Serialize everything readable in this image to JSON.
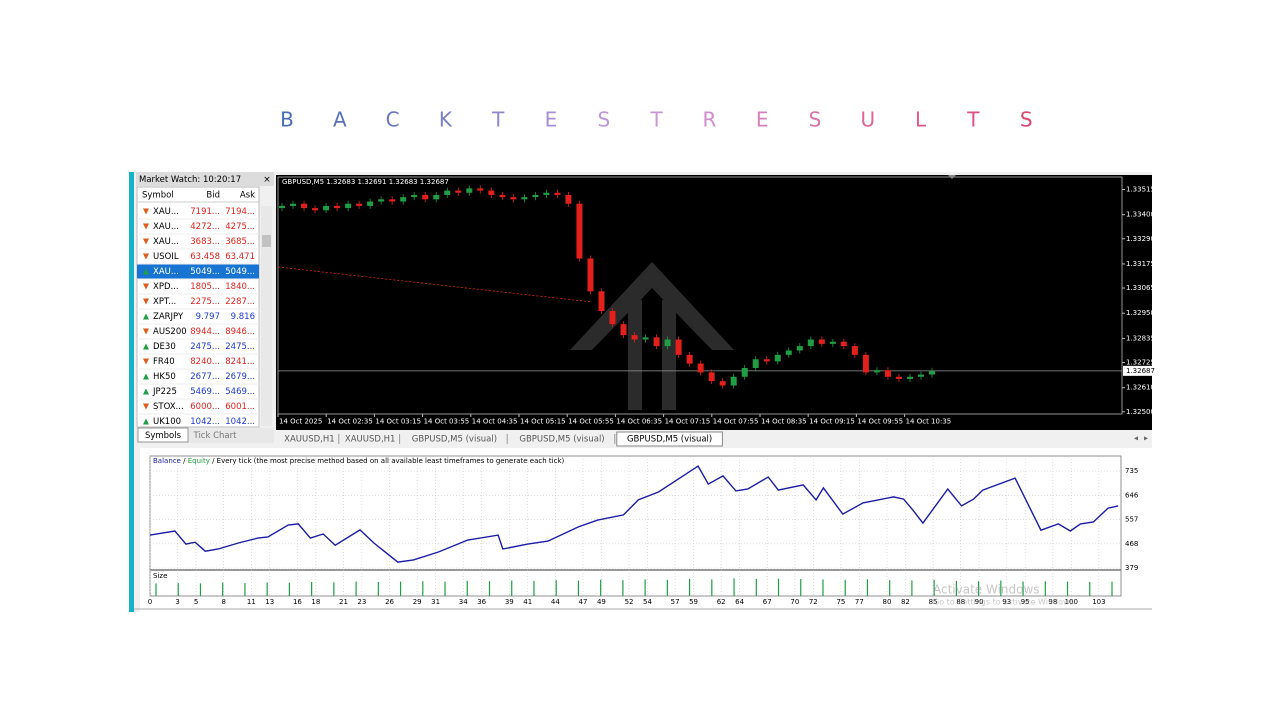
{
  "title_letters": [
    "B",
    "A",
    "C",
    "K",
    "T",
    "E",
    "S",
    "T",
    "R",
    "E",
    "S",
    "U",
    "L",
    "T",
    "S"
  ],
  "title_colors": [
    "#4a6db5",
    "#5a72ba",
    "#6a78c0",
    "#7a7fc6",
    "#8e88cc",
    "#a590d4",
    "#bb98dc",
    "#c995d6",
    "#d08ccb",
    "#d681bd",
    "#da74ab",
    "#dc6699",
    "#de5a8a",
    "#df4f7d",
    "#e04470"
  ],
  "market_watch": {
    "title": "Market Watch: 10:20:17",
    "columns": [
      "Symbol",
      "Bid",
      "Ask"
    ],
    "selected": 4,
    "rows": [
      {
        "symbol": "XAU...",
        "bid": "7191...",
        "ask": "7194...",
        "dir": "down"
      },
      {
        "symbol": "XAU...",
        "bid": "4272...",
        "ask": "4275...",
        "dir": "down"
      },
      {
        "symbol": "XAU...",
        "bid": "3683...",
        "ask": "3685...",
        "dir": "down"
      },
      {
        "symbol": "USOIL",
        "bid": "63.458",
        "ask": "63.471",
        "dir": "down"
      },
      {
        "symbol": "XAU...",
        "bid": "5049...",
        "ask": "5049...",
        "dir": "up"
      },
      {
        "symbol": "XPD...",
        "bid": "1805...",
        "ask": "1840...",
        "dir": "down"
      },
      {
        "symbol": "XPT...",
        "bid": "2275...",
        "ask": "2287...",
        "dir": "down"
      },
      {
        "symbol": "ZARJPY",
        "bid": "9.797",
        "ask": "9.816",
        "dir": "up"
      },
      {
        "symbol": "AUS200",
        "bid": "8944...",
        "ask": "8946...",
        "dir": "down"
      },
      {
        "symbol": "DE30",
        "bid": "2475...",
        "ask": "2475...",
        "dir": "up"
      },
      {
        "symbol": "FR40",
        "bid": "8240...",
        "ask": "8241...",
        "dir": "down"
      },
      {
        "symbol": "HK50",
        "bid": "2677...",
        "ask": "2679...",
        "dir": "up"
      },
      {
        "symbol": "JP225",
        "bid": "5469...",
        "ask": "5469...",
        "dir": "up"
      },
      {
        "symbol": "STOX...",
        "bid": "6000...",
        "ask": "6001...",
        "dir": "down"
      },
      {
        "symbol": "UK100",
        "bid": "1042...",
        "ask": "1042...",
        "dir": "up"
      }
    ],
    "tabs": [
      "Symbols",
      "Tick Chart"
    ]
  },
  "chart_tabs": [
    "XAUUSD,H1",
    "XAUUSD,H1",
    "GBPUSD,M5 (visual)",
    "GBPUSD,M5 (visual)",
    "GBPUSD,M5 (visual)"
  ],
  "active_tab": 4,
  "watermark": [
    "Activate Windows",
    "Go to Settings to activate Windows."
  ],
  "chart_data": [
    {
      "type": "candlestick",
      "title": "GBPUSD,M5  1.32683 1.32691 1.32683 1.32687",
      "up_color": "#1f9e46",
      "down_color": "#e3211c",
      "time_labels": [
        "14 Oct 2025",
        "14 Oct 02:35",
        "14 Oct 03:15",
        "14 Oct 03:55",
        "14 Oct 04:35",
        "14 Oct 05:15",
        "14 Oct 05:55",
        "14 Oct 06:35",
        "14 Oct 07:15",
        "14 Oct 07:55",
        "14 Oct 08:35",
        "14 Oct 09:15",
        "14 Oct 09:55",
        "14 Oct 10:35"
      ],
      "open": [
        1.3343,
        1.3344,
        1.3345,
        1.3343,
        1.3342,
        1.3344,
        1.3343,
        1.3345,
        1.3344,
        1.3346,
        1.3347,
        1.3346,
        1.3348,
        1.3349,
        1.3347,
        1.3349,
        1.3351,
        1.335,
        1.3352,
        1.3351,
        1.3349,
        1.3348,
        1.3347,
        1.3348,
        1.3349,
        1.335,
        1.3349,
        1.3345,
        1.332,
        1.3305,
        1.3296,
        1.329,
        1.3285,
        1.3283,
        1.3284,
        1.328,
        1.3283,
        1.3276,
        1.3272,
        1.3268,
        1.3264,
        1.3262,
        1.3266,
        1.327,
        1.3274,
        1.3273,
        1.3276,
        1.3278,
        1.328,
        1.3283,
        1.3281,
        1.3282,
        1.328,
        1.3276,
        1.3268,
        1.3269,
        1.3266,
        1.3265,
        1.3266,
        1.3267
      ],
      "close": [
        1.3344,
        1.3345,
        1.3343,
        1.3342,
        1.3344,
        1.3343,
        1.3345,
        1.3344,
        1.3346,
        1.3347,
        1.3346,
        1.3348,
        1.3349,
        1.3347,
        1.3349,
        1.3351,
        1.335,
        1.3352,
        1.3351,
        1.3349,
        1.3348,
        1.3347,
        1.3348,
        1.3349,
        1.335,
        1.3349,
        1.3345,
        1.332,
        1.3305,
        1.3296,
        1.329,
        1.3285,
        1.3283,
        1.3284,
        1.328,
        1.3283,
        1.3276,
        1.3272,
        1.3268,
        1.3264,
        1.3262,
        1.3266,
        1.327,
        1.3274,
        1.3273,
        1.3276,
        1.3278,
        1.328,
        1.3283,
        1.3281,
        1.3282,
        1.328,
        1.3276,
        1.3268,
        1.3269,
        1.3266,
        1.3265,
        1.3266,
        1.3267,
        1.32687
      ],
      "ylim": [
        1.3249,
        1.3354
      ],
      "yticks": [
        {
          "value": 1.33515,
          "label": "1.33515"
        },
        {
          "value": 1.334,
          "label": "1.33400"
        },
        {
          "value": 1.3329,
          "label": "1.33290"
        },
        {
          "value": 1.33175,
          "label": "1.33175"
        },
        {
          "value": 1.33065,
          "label": "1.33065"
        },
        {
          "value": 1.3295,
          "label": "1.32950"
        },
        {
          "value": 1.32835,
          "label": "1.32835"
        },
        {
          "value": 1.32725,
          "label": "1.32725"
        },
        {
          "value": 1.3261,
          "label": "1.32610"
        },
        {
          "value": 1.325,
          "label": "1.32500"
        }
      ],
      "last_price": {
        "value": 1.32687,
        "label": "1.32687"
      }
    },
    {
      "type": "line",
      "legend": [
        {
          "text": "Balance",
          "color": "#1c1ca8"
        },
        {
          "text": " / ",
          "color": "#000000"
        },
        {
          "text": "Equity",
          "color": "#1f9e46"
        },
        {
          "text": " / Every tick (the most precise method based on all available least timeframes to generate each tick)",
          "color": "#000000"
        }
      ],
      "series": [
        {
          "name": "Balance",
          "color": "#1c1ca8",
          "x": [
            0,
            2.7,
            3.9,
            4.9,
            6,
            7.4,
            9.6,
            11.7,
            12.8,
            15,
            16.1,
            17.4,
            18.8,
            20.1,
            22.8,
            24.3,
            26.9,
            28.6,
            31.3,
            34.5,
            37.8,
            38.3,
            41,
            43.2,
            46.5,
            48.6,
            51.4,
            53,
            55.2,
            59.5,
            60.6,
            62.2,
            63.6,
            64.9,
            67.1,
            68.2,
            70.9,
            72.3,
            73.1,
            75.2,
            77.4,
            80.7,
            81.8,
            82.8,
            83.9,
            86.6,
            88.1,
            89.4,
            90.4,
            93.9,
            96.7,
            98.6,
            99.9,
            101,
            102.4,
            104,
            105.1
          ],
          "values": [
            500,
            515,
            467,
            474,
            441,
            449,
            471,
            489,
            493,
            537,
            541,
            489,
            504,
            463,
            519,
            471,
            401,
            409,
            438,
            482,
            500,
            449,
            467,
            478,
            530,
            555,
            574,
            629,
            658,
            753,
            687,
            717,
            662,
            669,
            713,
            665,
            684,
            629,
            673,
            577,
            618,
            640,
            632,
            592,
            544,
            669,
            607,
            632,
            665,
            709,
            518,
            541,
            515,
            541,
            548,
            599,
            607
          ]
        }
      ],
      "xlim": [
        0,
        105.4
      ],
      "ylim": [
        372,
        790
      ],
      "yticks": [
        735,
        646,
        557,
        468,
        379
      ],
      "xticks": [
        0,
        3,
        5,
        8,
        11,
        13,
        16,
        18,
        21,
        23,
        26,
        29,
        31,
        34,
        36,
        39,
        41,
        44,
        47,
        49,
        52,
        54,
        57,
        59,
        62,
        64,
        67,
        70,
        72,
        75,
        77,
        80,
        82,
        85,
        88,
        90,
        93,
        95,
        98,
        100,
        103
      ],
      "grid": true
    },
    {
      "type": "bar",
      "title": "Size",
      "color": "#1f9e46",
      "values": [
        0.7,
        0.72,
        0.7,
        0.74,
        0.72,
        0.75,
        0.74,
        0.78,
        0.76,
        0.8,
        0.78,
        0.8,
        0.82,
        0.8,
        0.84,
        0.82,
        0.86,
        0.84,
        0.88,
        0.86,
        0.9,
        0.88,
        0.92,
        0.9,
        0.95,
        0.92,
        0.98,
        0.95,
        0.96,
        0.94,
        0.92,
        0.9,
        0.93,
        0.88,
        0.86,
        0.9,
        0.84,
        0.82,
        0.86,
        0.8,
        0.82,
        0.8,
        0.78,
        0.8
      ],
      "ylim": [
        0,
        1
      ]
    }
  ]
}
